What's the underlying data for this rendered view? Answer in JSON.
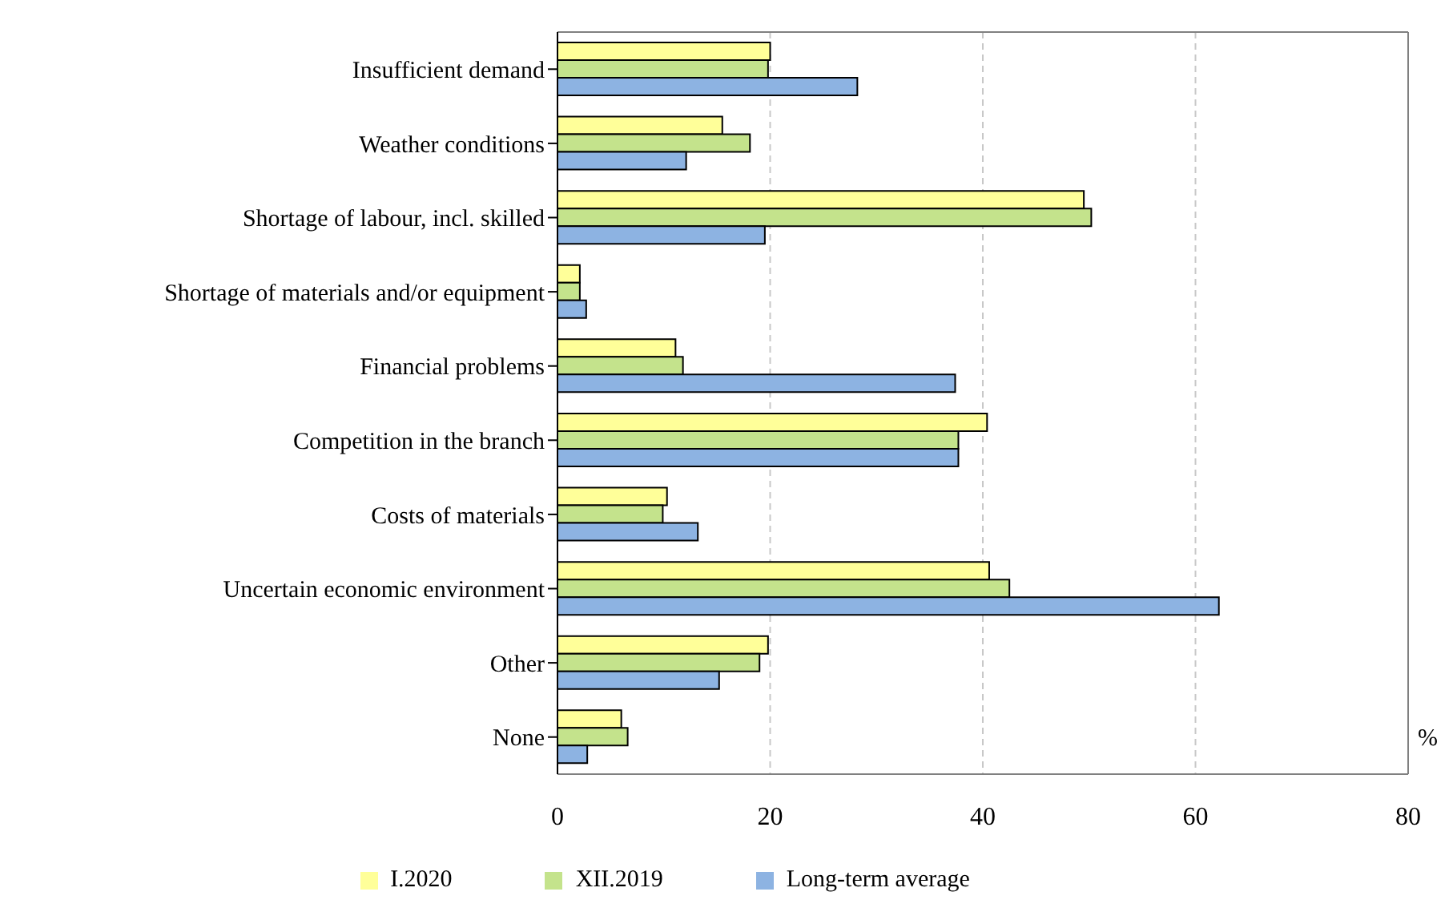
{
  "chart_data": {
    "type": "bar",
    "orientation": "horizontal",
    "xlabel": "%",
    "categories": [
      "Insufficient demand",
      "Weather conditions",
      "Shortage of labour, incl. skilled",
      "Shortage of materials and/or equipment",
      "Financial problems",
      "Competition in the branch",
      "Costs of materials",
      "Uncertain economic environment",
      "Other",
      "None"
    ],
    "series": [
      {
        "name": "I.2020",
        "color": "#ffff99",
        "values": [
          20.0,
          15.5,
          49.5,
          2.1,
          11.1,
          40.4,
          10.3,
          40.6,
          19.8,
          6.0
        ]
      },
      {
        "name": "XII.2019",
        "color": "#c4e38c",
        "values": [
          19.8,
          18.1,
          50.2,
          2.1,
          11.8,
          37.7,
          9.9,
          42.5,
          19.0,
          6.6
        ]
      },
      {
        "name": "Long-term average",
        "color": "#8db3e2",
        "values": [
          28.2,
          12.1,
          19.5,
          2.7,
          37.4,
          37.7,
          13.2,
          62.2,
          15.2,
          2.8
        ]
      }
    ],
    "xlim": [
      0,
      80
    ],
    "xticks": [
      0,
      20,
      40,
      60,
      80
    ],
    "grid": "x",
    "legend": "bottom"
  }
}
